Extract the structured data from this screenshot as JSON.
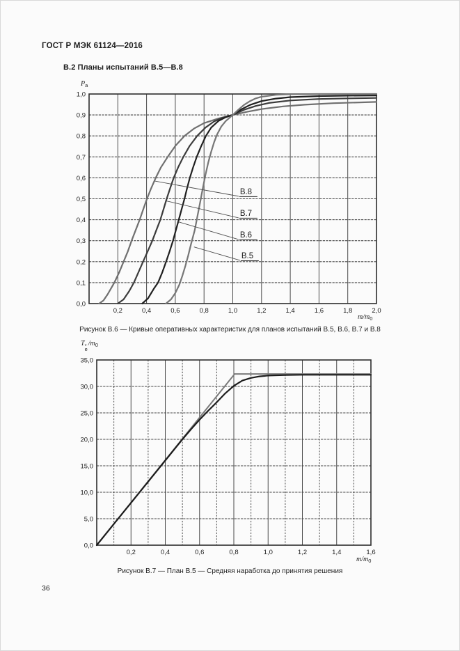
{
  "page": {
    "header_title": "ГОСТ Р МЭК 61124—2016",
    "section_title": "В.2 Планы испытаний В.5—В.8",
    "page_number": "36"
  },
  "figure1": {
    "ylabel_main": "P",
    "ylabel_sub": "a",
    "xlabel_main": "m/m",
    "xlabel_sub": "0"
  },
  "figure2": {
    "ylabel_t": "T",
    "ylabel_sup": "*",
    "ylabel_sub_e": "e",
    "ylabel_rest": "/m",
    "ylabel_rest_sub": "0",
    "xlabel_main": "m/m",
    "xlabel_sub": "0"
  },
  "chart_data": [
    {
      "type": "line",
      "title": "Рисунок В.6 — Кривые оперативных характеристик для планов испытаний В.5, В.6, В.7 и В.8",
      "xlabel": "m/m0",
      "ylabel": "Pa",
      "xlim": [
        0,
        2.0
      ],
      "ylim": [
        0,
        1.0
      ],
      "grid": {
        "x_step": 0.2,
        "y_step": 0.1,
        "x_label_step": 0.2
      },
      "legend_position": "inline-labels",
      "xticks": [
        {
          "v": 0.2,
          "label": "0,2"
        },
        {
          "v": 0.4,
          "label": "0,4"
        },
        {
          "v": 0.6,
          "label": "0,6"
        },
        {
          "v": 0.8,
          "label": "0,8"
        },
        {
          "v": 1.0,
          "label": "1,0"
        },
        {
          "v": 1.2,
          "label": "1,2"
        },
        {
          "v": 1.4,
          "label": "1,4"
        },
        {
          "v": 1.6,
          "label": "1,6"
        },
        {
          "v": 1.8,
          "label": "1,8"
        },
        {
          "v": 2.0,
          "label": "2,0"
        }
      ],
      "yticks": [
        {
          "v": 0.0,
          "label": "0,0"
        },
        {
          "v": 0.1,
          "label": "0,1"
        },
        {
          "v": 0.2,
          "label": "0,2"
        },
        {
          "v": 0.3,
          "label": "0,3"
        },
        {
          "v": 0.4,
          "label": "0,4"
        },
        {
          "v": 0.5,
          "label": "0,5"
        },
        {
          "v": 0.6,
          "label": "0,6"
        },
        {
          "v": 0.7,
          "label": "0,7"
        },
        {
          "v": 0.8,
          "label": "0,8"
        },
        {
          "v": 0.9,
          "label": "0,9"
        },
        {
          "v": 1.0,
          "label": "1,0"
        }
      ],
      "series": [
        {
          "name": "В.8",
          "color": "#6f6f6f",
          "width": 2.2,
          "points": [
            [
              0.07,
              0
            ],
            [
              0.1,
              0.015
            ],
            [
              0.13,
              0.045
            ],
            [
              0.176,
              0.1
            ],
            [
              0.21,
              0.15
            ],
            [
              0.24,
              0.2
            ],
            [
              0.27,
              0.25
            ],
            [
              0.296,
              0.3
            ],
            [
              0.324,
              0.35
            ],
            [
              0.352,
              0.4
            ],
            [
              0.377,
              0.45
            ],
            [
              0.403,
              0.5
            ],
            [
              0.432,
              0.55
            ],
            [
              0.464,
              0.6
            ],
            [
              0.5,
              0.65
            ],
            [
              0.547,
              0.7
            ],
            [
              0.6,
              0.752
            ],
            [
              0.664,
              0.8
            ],
            [
              0.73,
              0.835
            ],
            [
              0.8,
              0.861
            ],
            [
              0.9,
              0.883
            ],
            [
              1.0,
              0.9
            ],
            [
              1.1,
              0.915
            ],
            [
              1.2,
              0.928
            ],
            [
              1.35,
              0.941
            ],
            [
              1.5,
              0.949
            ],
            [
              1.7,
              0.956
            ],
            [
              2.0,
              0.962
            ]
          ]
        },
        {
          "name": "В.7",
          "color": "#3c3c3c",
          "width": 2.2,
          "points": [
            [
              0.2,
              0
            ],
            [
              0.24,
              0.02
            ],
            [
              0.28,
              0.06
            ],
            [
              0.312,
              0.1
            ],
            [
              0.344,
              0.15
            ],
            [
              0.376,
              0.2
            ],
            [
              0.408,
              0.25
            ],
            [
              0.44,
              0.3
            ],
            [
              0.468,
              0.35
            ],
            [
              0.496,
              0.4
            ],
            [
              0.518,
              0.45
            ],
            [
              0.54,
              0.5
            ],
            [
              0.564,
              0.55
            ],
            [
              0.589,
              0.6
            ],
            [
              0.62,
              0.65
            ],
            [
              0.656,
              0.7
            ],
            [
              0.7,
              0.752
            ],
            [
              0.752,
              0.8
            ],
            [
              0.81,
              0.84
            ],
            [
              0.87,
              0.869
            ],
            [
              0.93,
              0.887
            ],
            [
              1.0,
              0.9
            ],
            [
              1.08,
              0.925
            ],
            [
              1.16,
              0.943
            ],
            [
              1.25,
              0.957
            ],
            [
              1.4,
              0.969
            ],
            [
              1.6,
              0.976
            ],
            [
              1.8,
              0.979
            ],
            [
              2.0,
              0.981
            ]
          ]
        },
        {
          "name": "В.6",
          "color": "#202020",
          "width": 2.2,
          "points": [
            [
              0.37,
              0
            ],
            [
              0.41,
              0.025
            ],
            [
              0.45,
              0.07
            ],
            [
              0.48,
              0.1
            ],
            [
              0.51,
              0.15
            ],
            [
              0.536,
              0.2
            ],
            [
              0.561,
              0.25
            ],
            [
              0.584,
              0.3
            ],
            [
              0.604,
              0.35
            ],
            [
              0.624,
              0.4
            ],
            [
              0.644,
              0.45
            ],
            [
              0.664,
              0.5
            ],
            [
              0.682,
              0.55
            ],
            [
              0.701,
              0.6
            ],
            [
              0.724,
              0.65
            ],
            [
              0.749,
              0.7
            ],
            [
              0.779,
              0.75
            ],
            [
              0.813,
              0.8
            ],
            [
              0.85,
              0.84
            ],
            [
              0.9,
              0.871
            ],
            [
              0.95,
              0.889
            ],
            [
              1.0,
              0.9
            ],
            [
              1.06,
              0.927
            ],
            [
              1.12,
              0.948
            ],
            [
              1.2,
              0.966
            ],
            [
              1.3,
              0.978
            ],
            [
              1.4,
              0.985
            ],
            [
              1.6,
              0.99
            ],
            [
              1.8,
              0.992
            ],
            [
              2.0,
              0.993
            ]
          ]
        },
        {
          "name": "В.5",
          "color": "#767676",
          "width": 2.2,
          "points": [
            [
              0.535,
              0
            ],
            [
              0.57,
              0.02
            ],
            [
              0.6,
              0.05
            ],
            [
              0.628,
              0.09
            ],
            [
              0.648,
              0.13
            ],
            [
              0.67,
              0.18
            ],
            [
              0.69,
              0.23
            ],
            [
              0.71,
              0.285
            ],
            [
              0.735,
              0.35
            ],
            [
              0.755,
              0.42
            ],
            [
              0.775,
              0.49
            ],
            [
              0.79,
              0.545
            ],
            [
              0.81,
              0.615
            ],
            [
              0.83,
              0.675
            ],
            [
              0.85,
              0.725
            ],
            [
              0.87,
              0.77
            ],
            [
              0.89,
              0.806
            ],
            [
              0.92,
              0.845
            ],
            [
              0.95,
              0.87
            ],
            [
              1.0,
              0.9
            ],
            [
              1.04,
              0.926
            ],
            [
              1.08,
              0.949
            ],
            [
              1.12,
              0.966
            ],
            [
              1.16,
              0.979
            ],
            [
              1.2,
              0.987
            ],
            [
              1.3,
              0.996
            ],
            [
              1.4,
              0.999
            ],
            [
              1.6,
              1.0
            ],
            [
              2.0,
              1.0
            ]
          ]
        }
      ],
      "annotations": [
        {
          "text": "В.8",
          "at": [
            0.455,
            0.585
          ],
          "label": [
            1.05,
            0.522
          ]
        },
        {
          "text": "В.7",
          "at": [
            0.537,
            0.49
          ],
          "label": [
            1.05,
            0.419
          ]
        },
        {
          "text": "В.6",
          "at": [
            0.62,
            0.39
          ],
          "label": [
            1.05,
            0.316
          ]
        },
        {
          "text": "В.5",
          "at": [
            0.73,
            0.27
          ],
          "label": [
            1.06,
            0.216
          ]
        }
      ]
    },
    {
      "type": "line",
      "title": "Рисунок В.7 — План В.5 — Средняя наработка до принятия решения",
      "xlabel": "m/m0",
      "ylabel": "Te*/m0",
      "xlim": [
        0,
        1.6
      ],
      "ylim": [
        0,
        35.0
      ],
      "grid": {
        "x_step": 0.1,
        "y_step": 5.0,
        "x_label_step": 0.2
      },
      "legend_position": "none",
      "xticks": [
        {
          "v": 0.2,
          "label": "0,2"
        },
        {
          "v": 0.4,
          "label": "0,4"
        },
        {
          "v": 0.6,
          "label": "0,6"
        },
        {
          "v": 0.8,
          "label": "0,8"
        },
        {
          "v": 1.0,
          "label": "1,0"
        },
        {
          "v": 1.2,
          "label": "1,2"
        },
        {
          "v": 1.4,
          "label": "1,4"
        },
        {
          "v": 1.6,
          "label": "1,6"
        }
      ],
      "yticks": [
        {
          "v": 0,
          "label": "0,0"
        },
        {
          "v": 5,
          "label": "5,0"
        },
        {
          "v": 10,
          "label": "10,0"
        },
        {
          "v": 15,
          "label": "15,0"
        },
        {
          "v": 20,
          "label": "20,0"
        },
        {
          "v": 25,
          "label": "25,0"
        },
        {
          "v": 30,
          "label": "30,0"
        },
        {
          "v": 35,
          "label": "35,0"
        }
      ],
      "series": [
        {
          "name": "linear-approximation",
          "color": "#7a7a7a",
          "width": 2.0,
          "points": [
            [
              0,
              0
            ],
            [
              0.805,
              32.35
            ],
            [
              1.6,
              32.35
            ]
          ]
        },
        {
          "name": "mean-time-to-decision",
          "color": "#1c1c1c",
          "width": 2.2,
          "points": [
            [
              0,
              0
            ],
            [
              0.1,
              4.0
            ],
            [
              0.2,
              8.0
            ],
            [
              0.3,
              12.0
            ],
            [
              0.4,
              16.0
            ],
            [
              0.5,
              20.0
            ],
            [
              0.55,
              21.9
            ],
            [
              0.6,
              23.7
            ],
            [
              0.65,
              25.4
            ],
            [
              0.7,
              27.0
            ],
            [
              0.75,
              28.7
            ],
            [
              0.8,
              30.1
            ],
            [
              0.85,
              31.1
            ],
            [
              0.9,
              31.6
            ],
            [
              0.95,
              31.9
            ],
            [
              1.0,
              32.05
            ],
            [
              1.1,
              32.15
            ],
            [
              1.2,
              32.2
            ],
            [
              1.4,
              32.2
            ],
            [
              1.6,
              32.2
            ]
          ]
        }
      ],
      "annotations": []
    }
  ]
}
